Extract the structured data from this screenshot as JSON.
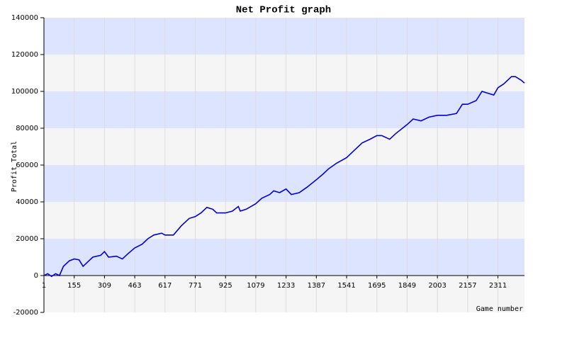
{
  "chart_data": {
    "type": "line",
    "title": "Net Profit graph",
    "x_label": "Game number",
    "y_label": "Profit Total",
    "x": [
      1,
      20,
      40,
      60,
      80,
      100,
      130,
      155,
      180,
      200,
      220,
      250,
      290,
      309,
      330,
      370,
      400,
      430,
      463,
      500,
      530,
      560,
      600,
      617,
      660,
      700,
      740,
      771,
      800,
      830,
      860,
      880,
      925,
      960,
      990,
      1000,
      1030,
      1079,
      1110,
      1150,
      1170,
      1200,
      1233,
      1260,
      1300,
      1340,
      1387,
      1420,
      1450,
      1490,
      1541,
      1580,
      1620,
      1660,
      1695,
      1720,
      1760,
      1790,
      1849,
      1880,
      1920,
      1960,
      2003,
      2050,
      2100,
      2130,
      2157,
      2200,
      2230,
      2260,
      2290,
      2311,
      2340,
      2380,
      2400,
      2430,
      2446
    ],
    "series": [
      {
        "name": "Net Profit",
        "color": "#0000dd",
        "values": [
          0,
          1000,
          -500,
          1000,
          0,
          5000,
          8000,
          9000,
          8500,
          5000,
          7000,
          10000,
          11000,
          13000,
          10000,
          10500,
          9000,
          12000,
          15000,
          17000,
          20000,
          22000,
          23000,
          22000,
          22000,
          27000,
          31000,
          32000,
          34000,
          37000,
          36000,
          34000,
          34000,
          35000,
          37500,
          35000,
          36000,
          39000,
          42000,
          44000,
          46000,
          45000,
          47000,
          44000,
          45000,
          48000,
          52000,
          55000,
          58000,
          61000,
          64000,
          68000,
          72000,
          74000,
          76000,
          76000,
          74000,
          77000,
          82000,
          85000,
          84000,
          86000,
          87000,
          87000,
          88000,
          93000,
          93000,
          95000,
          100000,
          99000,
          98000,
          102000,
          104000,
          108000,
          108000,
          106000,
          104500
        ]
      }
    ],
    "xlim": [
      1,
      2446
    ],
    "xticks": [
      1,
      155,
      309,
      463,
      617,
      771,
      925,
      1079,
      1233,
      1387,
      1541,
      1695,
      1849,
      2003,
      2157,
      2311
    ],
    "ylim": [
      -20000,
      140000
    ],
    "yticks": [
      -20000,
      0,
      20000,
      40000,
      60000,
      80000,
      100000,
      120000,
      140000
    ],
    "grid": true,
    "stripe_colors": [
      "#f5f5f5",
      "#dde4ff"
    ]
  }
}
